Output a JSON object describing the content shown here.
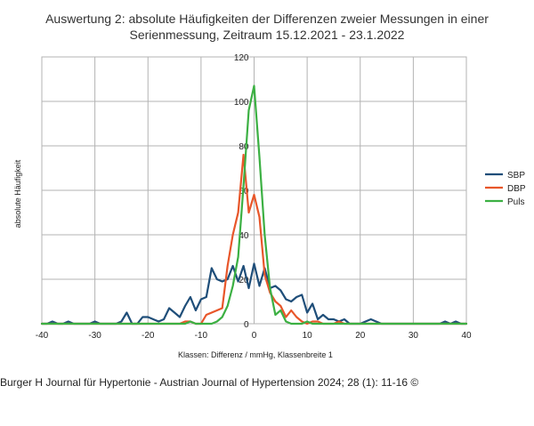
{
  "caption": "Burger H Journal für Hypertonie - Austrian Journal of Hypertension 2024; 28 (1): 11-16 ©",
  "chart_data": {
    "type": "line",
    "title": [
      "Auswertung 2: absolute Häufigkeiten der Differenzen zweier Messungen in einer",
      "Serienmessung, Zeitraum 15.12.2021 - 23.1.2022"
    ],
    "xlabel": "Klassen: Differenz / mmHg, Klassenbreite 1",
    "ylabel": "absolute Häufigkeit",
    "xlim": [
      -40,
      40
    ],
    "ylim": [
      0,
      120
    ],
    "xticks": [
      -40,
      -30,
      -20,
      -10,
      0,
      10,
      20,
      30,
      40
    ],
    "yticks": [
      0,
      20,
      40,
      60,
      80,
      100,
      120
    ],
    "grid": true,
    "legend_position": "right",
    "series": [
      {
        "name": "SBP",
        "color": "#1f4e79",
        "x": [
          -40,
          -39,
          -38,
          -37,
          -36,
          -35,
          -34,
          -33,
          -32,
          -31,
          -30,
          -29,
          -28,
          -27,
          -26,
          -25,
          -24,
          -23,
          -22,
          -21,
          -20,
          -19,
          -18,
          -17,
          -16,
          -15,
          -14,
          -13,
          -12,
          -11,
          -10,
          -9,
          -8,
          -7,
          -6,
          -5,
          -4,
          -3,
          -2,
          -1,
          0,
          1,
          2,
          3,
          4,
          5,
          6,
          7,
          8,
          9,
          10,
          11,
          12,
          13,
          14,
          15,
          16,
          17,
          18,
          19,
          20,
          21,
          22,
          23,
          24,
          25,
          26,
          27,
          28,
          29,
          30,
          31,
          32,
          33,
          34,
          35,
          36,
          37,
          38,
          39,
          40
        ],
        "values": [
          0,
          0,
          1,
          0,
          0,
          1,
          0,
          0,
          0,
          0,
          1,
          0,
          0,
          0,
          0,
          1,
          5,
          0,
          0,
          3,
          3,
          2,
          1,
          2,
          7,
          5,
          3,
          8,
          12,
          6,
          11,
          12,
          25,
          20,
          19,
          20,
          26,
          19,
          26,
          16,
          27,
          17,
          25,
          16,
          17,
          15,
          11,
          10,
          12,
          13,
          5,
          9,
          2,
          4,
          2,
          2,
          1,
          2,
          0,
          0,
          0,
          1,
          2,
          1,
          0,
          0,
          0,
          0,
          0,
          0,
          0,
          0,
          0,
          0,
          0,
          0,
          1,
          0,
          1,
          0,
          0
        ]
      },
      {
        "name": "DBP",
        "color": "#e8562a",
        "x": [
          -40,
          -20,
          -16,
          -15,
          -14,
          -13,
          -12,
          -11,
          -10,
          -9,
          -8,
          -7,
          -6,
          -5,
          -4,
          -3,
          -2,
          -1,
          0,
          1,
          2,
          3,
          4,
          5,
          6,
          7,
          8,
          9,
          10,
          11,
          12,
          13,
          14,
          15,
          16,
          17,
          18,
          19,
          20,
          40
        ],
        "values": [
          0,
          0,
          0,
          0,
          0,
          1,
          1,
          0,
          0,
          4,
          5,
          6,
          7,
          26,
          40,
          50,
          76,
          50,
          58,
          48,
          22,
          14,
          10,
          8,
          3,
          6,
          3,
          1,
          0,
          1,
          1,
          0,
          0,
          0,
          1,
          0,
          0,
          0,
          0,
          0
        ]
      },
      {
        "name": "Puls",
        "color": "#3cb043",
        "x": [
          -40,
          -20,
          -15,
          -14,
          -13,
          -12,
          -11,
          -10,
          -9,
          -8,
          -7,
          -6,
          -5,
          -4,
          -3,
          -2,
          -1,
          0,
          1,
          2,
          3,
          4,
          5,
          6,
          7,
          8,
          9,
          10,
          11,
          12,
          13,
          14,
          15,
          16,
          17,
          18,
          19,
          20,
          40
        ],
        "values": [
          0,
          0,
          0,
          0,
          0,
          1,
          0,
          0,
          0,
          0,
          1,
          3,
          8,
          17,
          30,
          62,
          96,
          107,
          75,
          40,
          16,
          4,
          6,
          1,
          0,
          0,
          0,
          1,
          0,
          0,
          0,
          0,
          0,
          0,
          0,
          0,
          0,
          0,
          0
        ]
      }
    ]
  }
}
